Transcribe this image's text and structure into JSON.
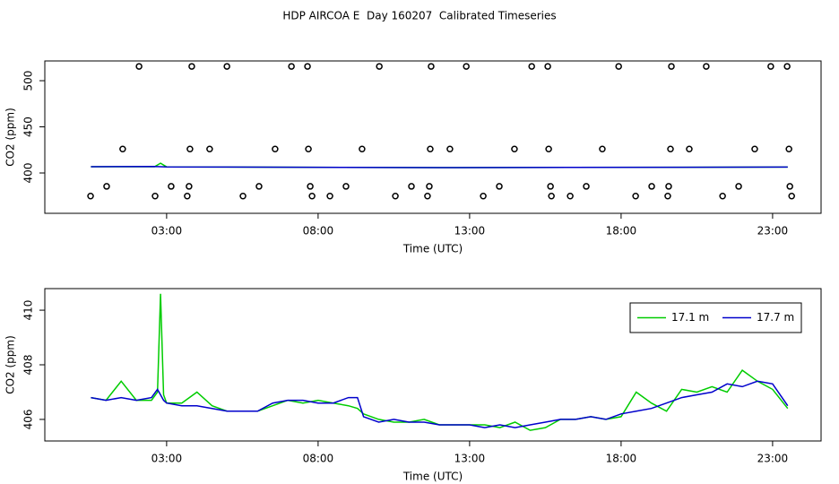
{
  "title": "HDP AIRCOA E  Day 160207  Calibrated Timeseries",
  "chart_data": [
    {
      "type": "scatter",
      "xlabel": "Time (UTC)",
      "ylabel": "CO2 (ppm)",
      "xlim": [
        -1.02,
        24.6
      ],
      "xticks": [
        {
          "value": 3,
          "label": "03:00"
        },
        {
          "value": 8,
          "label": "08:00"
        },
        {
          "value": 13,
          "label": "13:00"
        },
        {
          "value": 18,
          "label": "18:00"
        },
        {
          "value": 23,
          "label": "23:00"
        }
      ],
      "ylim": [
        356.3,
        521.4
      ],
      "yticks": [
        400,
        450,
        500
      ],
      "marker_color": "#000000",
      "x": [
        2.09,
        3.83,
        4.99,
        7.12,
        7.65,
        10.02,
        11.73,
        12.89,
        15.05,
        15.58,
        17.92,
        19.66,
        20.81,
        22.94,
        23.48,
        1.55,
        3.77,
        4.42,
        6.58,
        7.68,
        9.45,
        11.7,
        12.35,
        14.48,
        15.61,
        17.38,
        19.63,
        20.25,
        22.41,
        23.54,
        1.02,
        3.15,
        3.74,
        6.05,
        7.74,
        8.92,
        11.08,
        11.67,
        13.98,
        15.67,
        16.85,
        19.01,
        19.57,
        21.88,
        23.57,
        0.49,
        2.62,
        3.68,
        5.52,
        7.8,
        8.39,
        10.55,
        11.61,
        13.45,
        15.7,
        16.32,
        18.48,
        19.54,
        21.35,
        23.63
      ],
      "values": [
        515.5,
        515.5,
        515.5,
        515.5,
        515.5,
        515.5,
        515.5,
        515.5,
        515.5,
        515.5,
        515.5,
        515.5,
        515.5,
        515.5,
        515.5,
        426,
        426,
        426,
        426,
        426,
        426,
        426,
        426,
        426,
        426,
        426,
        426,
        426,
        426,
        426,
        385.5,
        385.5,
        385.5,
        385.5,
        385.5,
        385.5,
        385.5,
        385.5,
        385.5,
        385.5,
        385.5,
        385.5,
        385.5,
        385.5,
        385.5,
        375,
        375,
        375,
        375,
        375,
        375,
        375,
        375,
        375,
        375,
        375,
        375,
        375,
        375,
        375
      ],
      "series": [
        {
          "color": "#00cc00",
          "x": [
            0.5,
            2.6,
            2.8,
            3.0,
            12,
            23.5
          ],
          "values": [
            406.8,
            406.8,
            410.6,
            406.6,
            405.8,
            406.4
          ]
        },
        {
          "color": "#0000cc",
          "x": [
            0.5,
            2.6,
            2.8,
            3.0,
            12,
            23.5
          ],
          "values": [
            406.8,
            407.0,
            406.8,
            406.6,
            405.8,
            406.4
          ]
        }
      ]
    },
    {
      "type": "line",
      "xlabel": "Time (UTC)",
      "ylabel": "CO2 (ppm)",
      "xlim": [
        -1.02,
        24.6
      ],
      "xticks": [
        {
          "value": 3,
          "label": "03:00"
        },
        {
          "value": 8,
          "label": "08:00"
        },
        {
          "value": 13,
          "label": "13:00"
        },
        {
          "value": 18,
          "label": "18:00"
        },
        {
          "value": 23,
          "label": "23:00"
        }
      ],
      "ylim": [
        405.21,
        410.79
      ],
      "yticks": [
        406,
        408,
        410
      ],
      "legend": "top-right",
      "x": [
        0.5,
        1,
        1.5,
        2,
        2.5,
        2.7,
        2.8,
        2.9,
        3,
        3.5,
        4,
        4.5,
        5,
        5.5,
        6,
        6.5,
        7,
        7.5,
        8,
        8.5,
        9,
        9.3,
        9.5,
        10,
        10.5,
        11,
        11.5,
        12,
        12.5,
        13,
        13.5,
        14,
        14.5,
        15,
        15.5,
        16,
        16.5,
        17,
        17.5,
        18,
        18.5,
        19,
        19.5,
        20,
        20.5,
        21,
        21.5,
        22,
        22.5,
        23,
        23.5
      ],
      "series": [
        {
          "name": "17.1 m",
          "color": "#00cc00",
          "values": [
            406.8,
            406.7,
            407.4,
            406.7,
            406.7,
            407.0,
            410.6,
            406.9,
            406.6,
            406.6,
            407.0,
            406.5,
            406.3,
            406.3,
            406.3,
            406.5,
            406.7,
            406.6,
            406.7,
            406.6,
            406.5,
            406.4,
            406.2,
            406.0,
            405.9,
            405.9,
            406.0,
            405.8,
            405.8,
            405.8,
            405.8,
            405.7,
            405.9,
            405.6,
            405.7,
            406.0,
            406.0,
            406.1,
            406.0,
            406.1,
            407.0,
            406.6,
            406.3,
            407.1,
            407.0,
            407.2,
            407.0,
            407.8,
            407.4,
            407.1,
            406.4
          ]
        },
        {
          "name": "17.7 m",
          "color": "#0000cc",
          "values": [
            406.8,
            406.7,
            406.8,
            406.7,
            406.8,
            407.1,
            406.9,
            406.7,
            406.6,
            406.5,
            406.5,
            406.4,
            406.3,
            406.3,
            406.3,
            406.6,
            406.7,
            406.7,
            406.6,
            406.6,
            406.8,
            406.8,
            406.1,
            405.9,
            406.0,
            405.9,
            405.9,
            405.8,
            405.8,
            405.8,
            405.7,
            405.8,
            405.7,
            405.8,
            405.9,
            406.0,
            406.0,
            406.1,
            406.0,
            406.2,
            406.3,
            406.4,
            406.6,
            406.8,
            406.9,
            407.0,
            407.3,
            407.2,
            407.4,
            407.3,
            406.5
          ]
        }
      ]
    }
  ]
}
